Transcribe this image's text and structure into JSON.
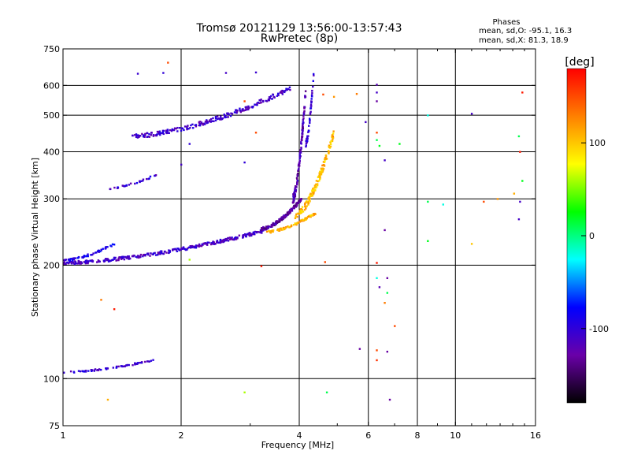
{
  "chart_data": {
    "type": "scatter",
    "title": "Tromsø 20121129 13:56:00-13:57:43",
    "subtitle": "RwPretec (8p)",
    "xlabel": "Frequency [MHz]",
    "ylabel": "Stationary phase Virtual Height [km]",
    "x_scale": "log",
    "y_scale": "log",
    "xlim": [
      1,
      16
    ],
    "ylim": [
      75,
      750
    ],
    "x_ticks": [
      1,
      2,
      4,
      6,
      8,
      10,
      16
    ],
    "x_tick_labels": [
      "1",
      "2",
      "4",
      "6",
      "8",
      "10",
      "16"
    ],
    "x_grid": [
      2,
      4,
      6,
      8,
      10
    ],
    "y_ticks": [
      75,
      100,
      200,
      300,
      400,
      500,
      600,
      750
    ],
    "y_tick_labels": [
      "75",
      "100",
      "200",
      "300",
      "400",
      "500",
      "600",
      "750"
    ],
    "y_grid": [
      100,
      200,
      300,
      400,
      500,
      600
    ],
    "grid": true,
    "stats": {
      "heading": "Phases",
      "line_o": "mean, sd,O: -95.1, 16.3",
      "line_x": "mean, sd,X: 81.3, 18.9"
    },
    "colorbar": {
      "label": "[deg]",
      "range": [
        -180,
        180
      ],
      "ticks": [
        100,
        0,
        -100
      ],
      "tick_labels": [
        "100",
        "0",
        "-100"
      ],
      "colormap": [
        "#000000",
        "#6a00a8",
        "#0000ff",
        "#00ffff",
        "#00ff00",
        "#ffff00",
        "#ff8000",
        "#ff0000"
      ]
    },
    "traces": [
      {
        "freq_range": [
          1.0,
          1.7
        ],
        "height_range": [
          104,
          112
        ],
        "phase": -105,
        "count": 70
      },
      {
        "freq_range": [
          1.0,
          3.3
        ],
        "height_range": [
          203,
          248
        ],
        "phase": -110,
        "count": 340
      },
      {
        "freq_range": [
          1.0,
          1.35
        ],
        "height_range": [
          206,
          228
        ],
        "phase": -90,
        "count": 60
      },
      {
        "freq_range": [
          3.2,
          4.05
        ],
        "height_range": [
          250,
          300
        ],
        "phase": -130,
        "count": 170
      },
      {
        "freq_range": [
          3.85,
          4.15
        ],
        "height_range": [
          300,
          580
        ],
        "phase": -120,
        "count": 120
      },
      {
        "freq_range": [
          3.3,
          4.4
        ],
        "height_range": [
          245,
          275
        ],
        "phase": 110,
        "count": 90
      },
      {
        "freq_range": [
          3.9,
          4.9
        ],
        "height_range": [
          270,
          450
        ],
        "phase": 105,
        "count": 150
      },
      {
        "freq_range": [
          1.5,
          3.8
        ],
        "height_range": [
          440,
          590
        ],
        "phase": -110,
        "count": 230
      },
      {
        "freq_range": [
          1.3,
          1.75
        ],
        "height_range": [
          320,
          350
        ],
        "phase": -105,
        "count": 30
      },
      {
        "freq_range": [
          4.15,
          4.35
        ],
        "height_range": [
          420,
          650
        ],
        "phase": -100,
        "count": 45
      }
    ],
    "scatter_points": [
      [
        1.55,
        645,
        -105
      ],
      [
        1.8,
        648,
        -100
      ],
      [
        1.85,
        690,
        150
      ],
      [
        2.6,
        648,
        -110
      ],
      [
        2.9,
        545,
        150
      ],
      [
        3.1,
        650,
        -105
      ],
      [
        2.0,
        370,
        -110
      ],
      [
        2.1,
        420,
        -100
      ],
      [
        2.9,
        375,
        -100
      ],
      [
        3.1,
        450,
        150
      ],
      [
        4.9,
        560,
        120
      ],
      [
        5.6,
        570,
        130
      ],
      [
        5.9,
        480,
        -110
      ],
      [
        6.3,
        603,
        -120
      ],
      [
        6.3,
        575,
        -110
      ],
      [
        6.3,
        545,
        -130
      ],
      [
        6.3,
        450,
        150
      ],
      [
        6.3,
        430,
        10
      ],
      [
        6.4,
        415,
        20
      ],
      [
        6.6,
        380,
        -110
      ],
      [
        7.2,
        420,
        20
      ],
      [
        8.5,
        500,
        -20
      ],
      [
        11.0,
        505,
        -110
      ],
      [
        14.5,
        440,
        10
      ],
      [
        14.8,
        575,
        170
      ],
      [
        14.6,
        400,
        170
      ],
      [
        14.8,
        335,
        20
      ],
      [
        14.6,
        295,
        -110
      ],
      [
        14.5,
        265,
        -110
      ],
      [
        8.5,
        295,
        10
      ],
      [
        9.3,
        290,
        -20
      ],
      [
        11.8,
        295,
        150
      ],
      [
        12.8,
        300,
        120
      ],
      [
        14.1,
        310,
        110
      ],
      [
        8.5,
        232,
        20
      ],
      [
        11.0,
        228,
        100
      ],
      [
        6.6,
        248,
        -130
      ],
      [
        6.3,
        203,
        170
      ],
      [
        6.3,
        185,
        -20
      ],
      [
        6.4,
        175,
        -120
      ],
      [
        6.7,
        185,
        -130
      ],
      [
        6.7,
        169,
        10
      ],
      [
        6.6,
        159,
        130
      ],
      [
        7.0,
        138,
        150
      ],
      [
        6.3,
        119,
        150
      ],
      [
        6.3,
        112,
        160
      ],
      [
        6.7,
        118,
        -130
      ],
      [
        5.7,
        120,
        -130
      ],
      [
        6.8,
        88,
        -130
      ],
      [
        4.7,
        92,
        10
      ],
      [
        2.9,
        92,
        60
      ],
      [
        1.3,
        88,
        110
      ],
      [
        1.25,
        162,
        130
      ],
      [
        1.35,
        153,
        170
      ],
      [
        3.2,
        199,
        170
      ],
      [
        2.1,
        207,
        60
      ],
      [
        4.65,
        204,
        150
      ],
      [
        4.6,
        568,
        150
      ]
    ]
  }
}
